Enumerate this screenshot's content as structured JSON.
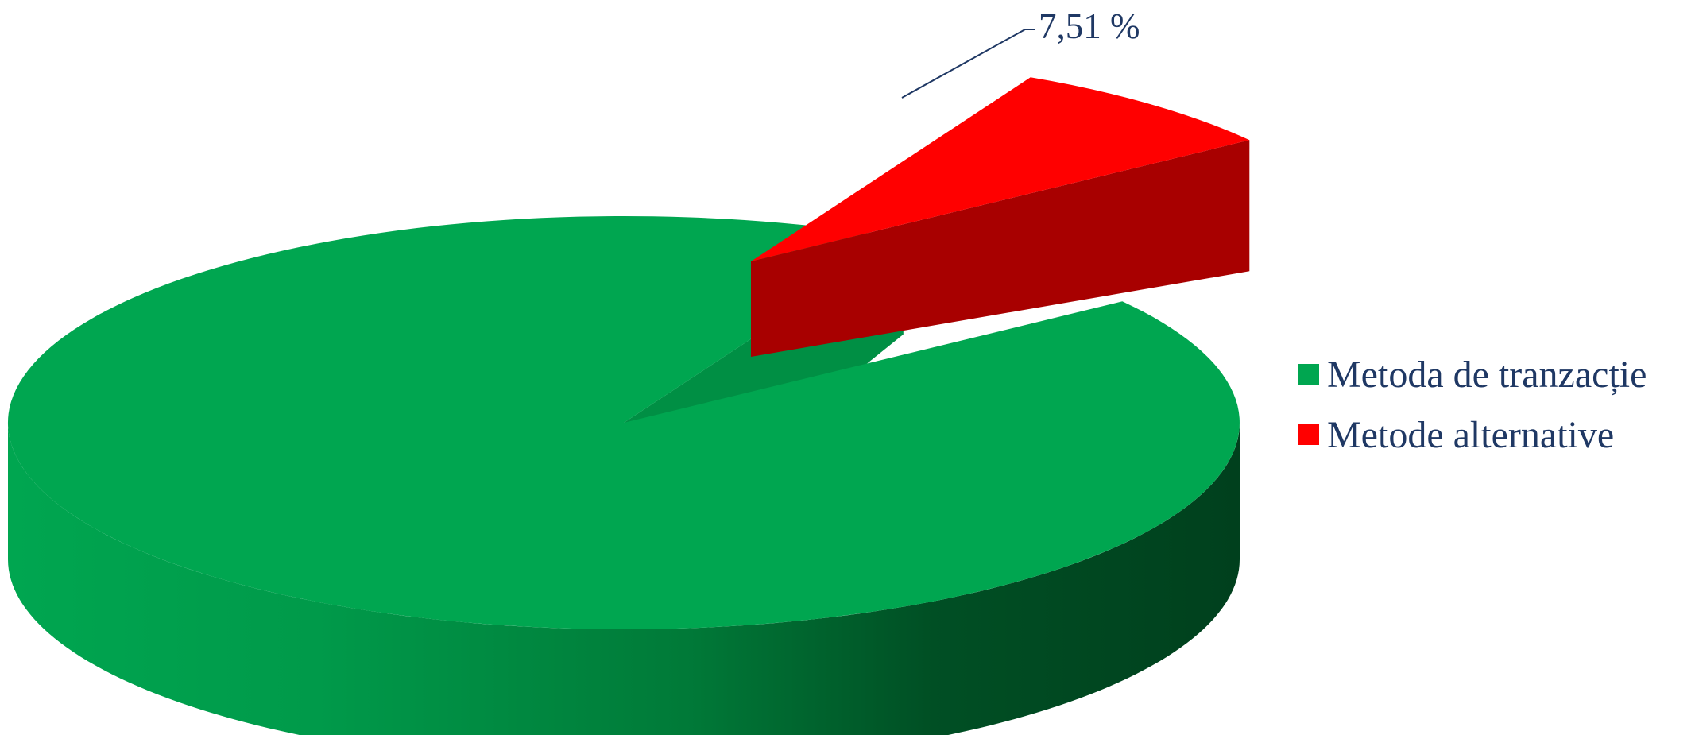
{
  "chart_data": {
    "type": "pie",
    "style": "3d-exploded",
    "series": [
      {
        "name": "Metoda de tranzacție",
        "value": 92.49,
        "color": "#00a650",
        "data_label": ""
      },
      {
        "name": "Metode alternative",
        "value": 7.51,
        "color": "#ff0000",
        "data_label": "7,51 %"
      }
    ],
    "legend_position": "right"
  },
  "legend": {
    "items": [
      {
        "label": "Metoda de tranzacție",
        "color": "#00a650"
      },
      {
        "label": "Metode alternative",
        "color": "#ff0000"
      }
    ]
  },
  "labels": {
    "alternative_pct": "7,51 %"
  }
}
